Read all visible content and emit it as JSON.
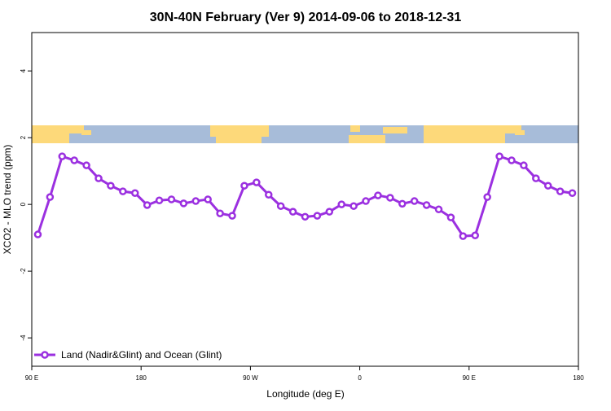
{
  "chart_data": {
    "type": "line",
    "title": "30N-40N February (Ver 9)   2014-09-06 to 2018-12-31",
    "x_label": "Longitude (deg E)",
    "y_label": "XCO2 - MLO trend (ppm)",
    "x": [
      95,
      105,
      115,
      125,
      135,
      145,
      155,
      165,
      175,
      185,
      195,
      205,
      215,
      225,
      235,
      245,
      255,
      265,
      275,
      285,
      295,
      305,
      315,
      325,
      335,
      345,
      355,
      365,
      375,
      385,
      395,
      405,
      415,
      425,
      435,
      445,
      455,
      465,
      475,
      485,
      495,
      505,
      515,
      525,
      535
    ],
    "series": [
      {
        "name": "Land (Nadir&Glint) and Ocean (Glint)",
        "color": "#9b30e0",
        "values": [
          -0.9,
          0.22,
          1.44,
          1.32,
          1.17,
          0.78,
          0.56,
          0.39,
          0.34,
          -0.02,
          0.12,
          0.15,
          0.03,
          0.1,
          0.15,
          -0.27,
          -0.34,
          0.56,
          0.66,
          0.29,
          -0.05,
          -0.22,
          -0.37,
          -0.34,
          -0.22,
          0.0,
          -0.05,
          0.1,
          0.27,
          0.2,
          0.02,
          0.1,
          -0.02,
          -0.15,
          -0.39,
          -0.95,
          -0.93,
          0.22,
          1.44,
          1.32,
          1.17,
          0.78,
          0.56,
          0.39,
          0.34
        ]
      }
    ],
    "xlim": [
      90,
      540
    ],
    "xticks": [
      {
        "value": 90,
        "label": "90 E"
      },
      {
        "value": 180,
        "label": "180"
      },
      {
        "value": 270,
        "label": "90 W"
      },
      {
        "value": 360,
        "label": "0"
      },
      {
        "value": 450,
        "label": "90 E"
      },
      {
        "value": 540,
        "label": "180"
      }
    ],
    "ylim": [
      -4.85,
      5.15
    ],
    "yticks": [
      -4,
      -2,
      0,
      2,
      4
    ],
    "legend": "bottom-left"
  }
}
